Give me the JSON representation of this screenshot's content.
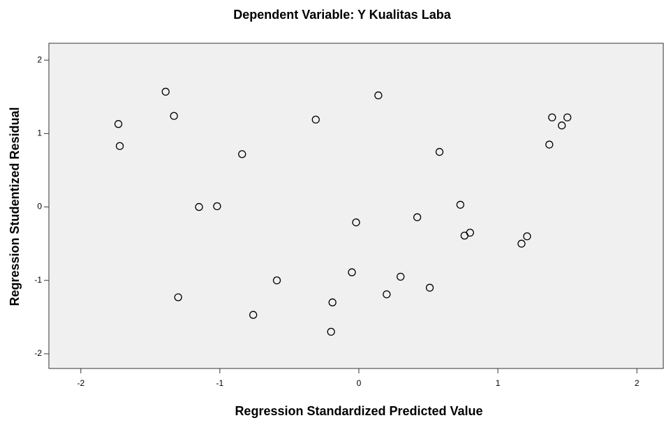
{
  "chart_data": {
    "type": "scatter",
    "title": "Dependent Variable: Y Kualitas Laba",
    "xlabel": "Regression Standardized Predicted Value",
    "ylabel": "Regression Studentized Residual",
    "x": [
      -1.73,
      -1.72,
      -1.39,
      -1.33,
      -1.3,
      -1.15,
      -1.02,
      -0.84,
      -0.76,
      -0.59,
      -0.31,
      -0.2,
      -0.19,
      -0.05,
      -0.02,
      0.14,
      0.2,
      0.3,
      0.42,
      0.51,
      0.58,
      0.73,
      0.76,
      0.8,
      1.17,
      1.21,
      1.37,
      1.39,
      1.46,
      1.5
    ],
    "values": [
      1.13,
      0.83,
      1.57,
      1.24,
      -1.23,
      0.0,
      0.01,
      0.72,
      -1.47,
      -1.0,
      1.19,
      -1.7,
      -1.3,
      -0.89,
      -0.21,
      1.52,
      -1.19,
      -0.95,
      -0.14,
      -1.1,
      0.75,
      0.03,
      -0.39,
      -0.35,
      -0.5,
      -0.4,
      0.85,
      1.22,
      1.11,
      1.22
    ],
    "xlim": [
      -2.23,
      2.19
    ],
    "ylim": [
      -2.2,
      2.23
    ],
    "xticks": [
      -2,
      -1,
      0,
      1,
      2
    ],
    "yticks": [
      -2,
      -1,
      0,
      1,
      2
    ],
    "color": "#000000",
    "background": "#f0f0f0"
  }
}
